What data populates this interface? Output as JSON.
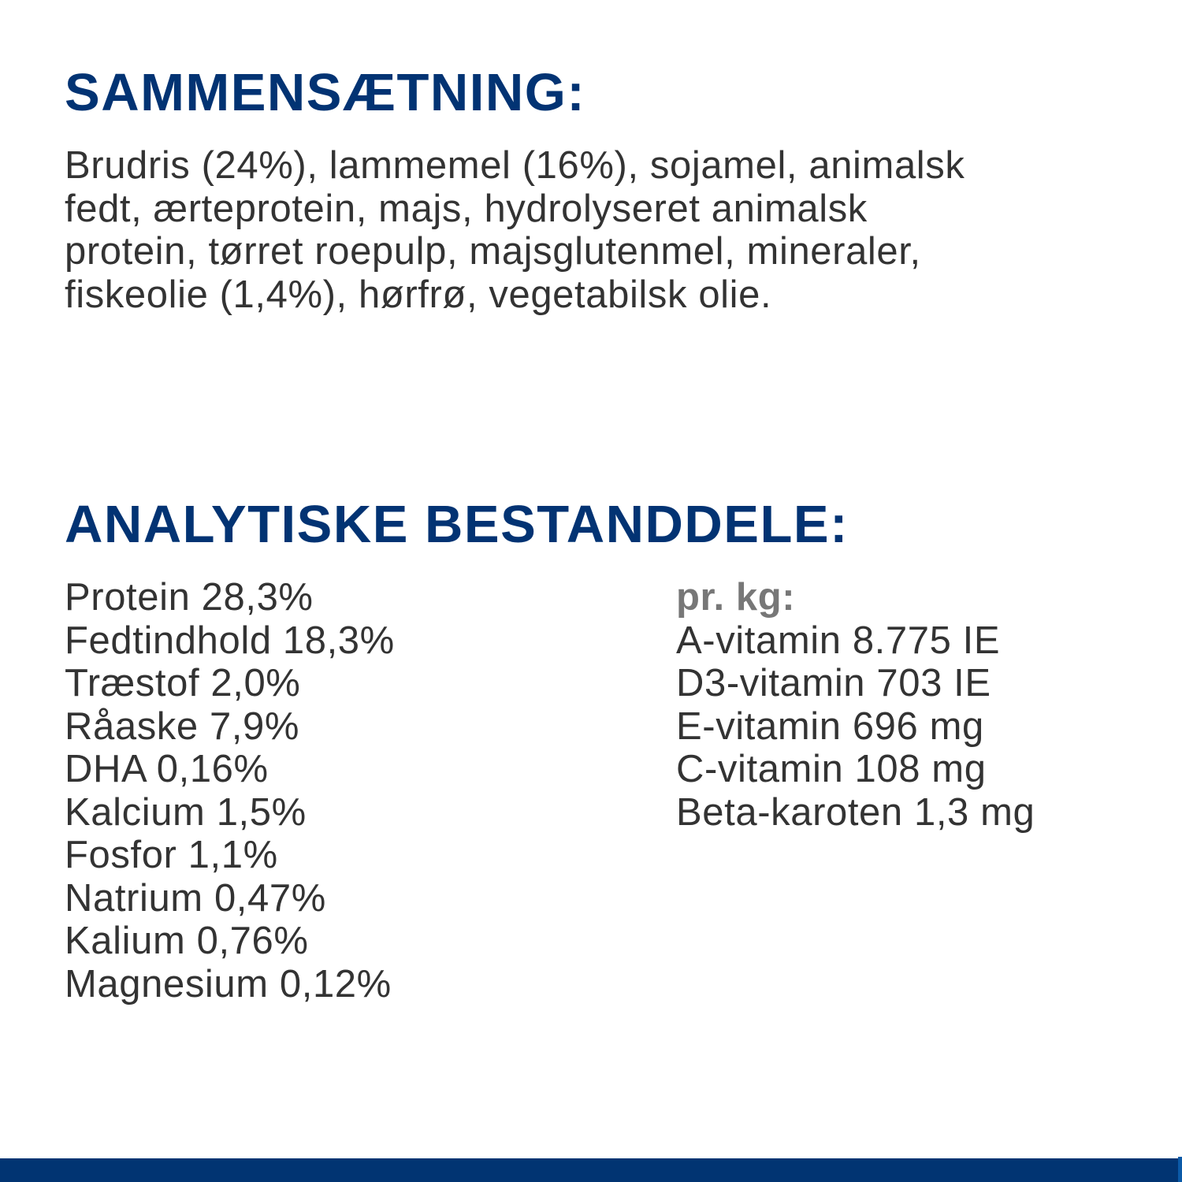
{
  "composition": {
    "heading": "SAMMENSÆTNING:",
    "lines": [
      "Brudris (24%), lammemel (16%), sojamel, animalsk",
      "fedt, ærteprotein, majs, hydrolyseret animalsk",
      "protein, tørret roepulp, majsglutenmel, mineraler,",
      "fiskeolie (1,4%), hørfrø, vegetabilsk olie."
    ]
  },
  "analysis": {
    "heading": "ANALYTISKE BESTANDDELE:",
    "left": [
      "Protein 28,3%",
      "Fedtindhold 18,3%",
      "Træstof 2,0%",
      "Råaske 7,9%",
      "DHA 0,16%",
      "Kalcium 1,5%",
      "Fosfor 1,1%",
      "Natrium 0,47%",
      "Kalium 0,76%",
      "Magnesium 0,12%"
    ],
    "right_heading": "pr. kg:",
    "right": [
      "A-vitamin 8.775 IE",
      "D3-vitamin 703 IE",
      "E-vitamin 696 mg",
      "C-vitamin 108 mg",
      "Beta-karoten 1,3 mg"
    ]
  },
  "colors": {
    "heading": "#023373",
    "text": "#333333",
    "footer_bar": "#013472"
  }
}
